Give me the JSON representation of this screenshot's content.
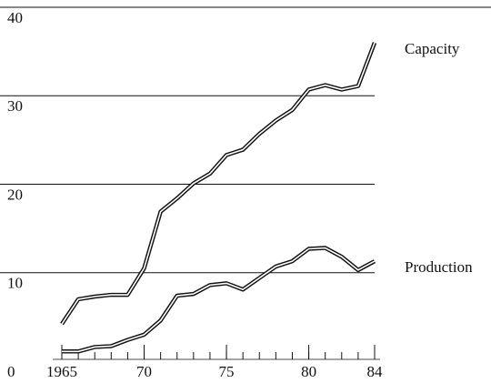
{
  "chart_data": {
    "type": "line",
    "x": [
      1965,
      1966,
      1967,
      1968,
      1969,
      1970,
      1971,
      1972,
      1973,
      1974,
      1975,
      1976,
      1977,
      1978,
      1979,
      1980,
      1981,
      1982,
      1983,
      1984
    ],
    "series": [
      {
        "name": "Capacity",
        "color": "#111111",
        "values": [
          4.2,
          7.0,
          7.3,
          7.5,
          7.5,
          10.5,
          16.9,
          18.4,
          20.1,
          21.2,
          23.3,
          23.9,
          25.7,
          27.2,
          28.4,
          30.7,
          31.2,
          30.7,
          31.1,
          36.0
        ]
      },
      {
        "name": "Production",
        "color": "#111111",
        "values": [
          1.1,
          1.1,
          1.6,
          1.7,
          2.4,
          3.0,
          4.6,
          7.4,
          7.6,
          8.6,
          8.8,
          8.1,
          9.4,
          10.7,
          11.3,
          12.7,
          12.8,
          11.8,
          10.3,
          11.3
        ]
      }
    ],
    "xlim": [
      1965,
      1984
    ],
    "xticks": [
      1965,
      {
        "value": 1970,
        "label": "70"
      },
      {
        "value": 1975,
        "label": "75"
      },
      {
        "value": 1980,
        "label": "80"
      },
      {
        "value": 1984,
        "label": "84"
      }
    ],
    "ylim": [
      0,
      40
    ],
    "yticks": [
      0,
      10,
      20,
      30,
      40
    ],
    "grid": true
  }
}
